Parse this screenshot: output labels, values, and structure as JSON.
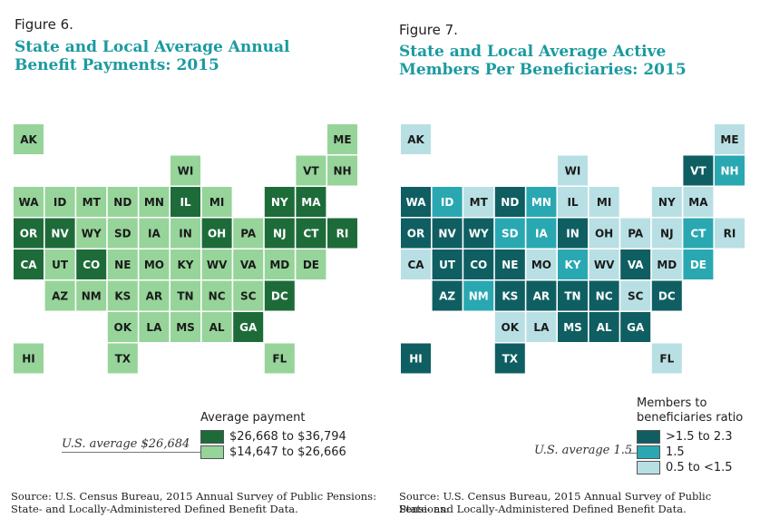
{
  "figures": [
    {
      "id": "fig6",
      "label": "Figure 6.",
      "title_line1": "State and Local Average Annual",
      "title_line2": "Benefit Payments: 2015",
      "legend_title": "Average payment",
      "legend_items": [
        {
          "label": "$26,668 to $36,794",
          "color": "#1e6b3a",
          "text_color": "#ffffff"
        },
        {
          "label": "$14,647 to $26,666",
          "color": "#96d49a",
          "text_color": "#1a1a1a"
        }
      ],
      "average_note": "U.S. average $26,684",
      "source_line1": "Source: U.S. Census Bureau, 2015 Annual Survey of Public Pensions:",
      "source_line2": "State- and Locally-Administered Defined Benefit Data."
    },
    {
      "id": "fig7",
      "label": "Figure 7.",
      "title_line1": "State and Local Average Active",
      "title_line2": "Members Per Beneficiaries: 2015",
      "legend_title_line1": "Members to",
      "legend_title_line2": "beneficiaries ratio",
      "legend_items": [
        {
          "label": ">1.5 to 2.3",
          "color": "#0f5e62",
          "text_color": "#ffffff"
        },
        {
          "label": "1.5",
          "color": "#2aa8b2",
          "text_color": "#ffffff"
        },
        {
          "label": "0.5 to <1.5",
          "color": "#b8e0e4",
          "text_color": "#1a1a1a"
        }
      ],
      "average_note": "U.S. average 1.5",
      "source_line1": "Source: U.S. Census Bureau, 2015 Annual Survey of Public Pensions:",
      "source_line2": "State- and Locally-Administered Defined Benefit Data."
    }
  ],
  "chart_data": [
    {
      "type": "heatmap",
      "subtype": "state tile map",
      "title": "State and Local Average Annual Benefit Payments: 2015",
      "legend_title": "Average payment",
      "categories": [
        "$26,668 to $36,794",
        "$14,647 to $26,666"
      ],
      "average": "U.S. average $26,684",
      "states": {
        "AK": 1,
        "ME": 1,
        "WI": 1,
        "VT": 1,
        "NH": 1,
        "WA": 1,
        "ID": 1,
        "MT": 1,
        "ND": 1,
        "MN": 1,
        "IL": 0,
        "MI": 1,
        "NY": 0,
        "MA": 0,
        "OR": 0,
        "NV": 0,
        "WY": 1,
        "SD": 1,
        "IA": 1,
        "IN": 1,
        "OH": 0,
        "PA": 1,
        "NJ": 0,
        "CT": 0,
        "RI": 0,
        "CA": 0,
        "UT": 1,
        "CO": 0,
        "NE": 1,
        "MO": 1,
        "KY": 1,
        "WV": 1,
        "VA": 1,
        "MD": 1,
        "DE": 1,
        "AZ": 1,
        "NM": 1,
        "KS": 1,
        "AR": 1,
        "TN": 1,
        "NC": 1,
        "SC": 1,
        "DC": 0,
        "OK": 1,
        "LA": 1,
        "MS": 1,
        "AL": 1,
        "GA": 0,
        "HI": 1,
        "TX": 1,
        "FL": 1
      }
    },
    {
      "type": "heatmap",
      "subtype": "state tile map",
      "title": "State and Local Average Active Members Per Beneficiaries: 2015",
      "legend_title": "Members to beneficiaries ratio",
      "categories": [
        ">1.5 to 2.3",
        "1.5",
        "0.5 to <1.5"
      ],
      "average": "U.S. average 1.5",
      "states": {
        "AK": 2,
        "ME": 2,
        "WI": 2,
        "VT": 0,
        "NH": 1,
        "WA": 0,
        "ID": 1,
        "MT": 2,
        "ND": 0,
        "MN": 1,
        "IL": 2,
        "MI": 2,
        "NY": 2,
        "MA": 2,
        "OR": 0,
        "NV": 0,
        "WY": 0,
        "SD": 1,
        "IA": 1,
        "IN": 0,
        "OH": 2,
        "PA": 2,
        "NJ": 2,
        "CT": 1,
        "RI": 2,
        "CA": 2,
        "UT": 0,
        "CO": 0,
        "NE": 0,
        "MO": 2,
        "KY": 1,
        "WV": 2,
        "VA": 0,
        "MD": 2,
        "DE": 1,
        "AZ": 0,
        "NM": 1,
        "KS": 0,
        "AR": 0,
        "TN": 0,
        "NC": 0,
        "SC": 2,
        "DC": 0,
        "OK": 2,
        "LA": 2,
        "MS": 0,
        "AL": 0,
        "GA": 0,
        "HI": 0,
        "TX": 0,
        "FL": 2
      }
    }
  ]
}
